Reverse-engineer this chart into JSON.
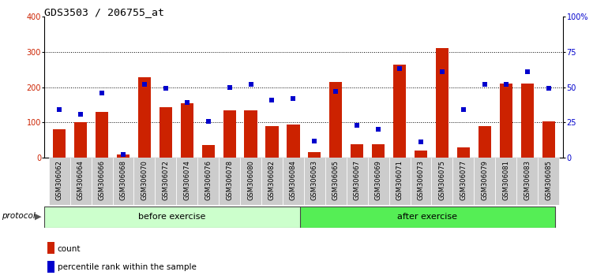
{
  "title": "GDS3503 / 206755_at",
  "categories": [
    "GSM306062",
    "GSM306064",
    "GSM306066",
    "GSM306068",
    "GSM306070",
    "GSM306072",
    "GSM306074",
    "GSM306076",
    "GSM306078",
    "GSM306080",
    "GSM306082",
    "GSM306084",
    "GSM306063",
    "GSM306065",
    "GSM306067",
    "GSM306069",
    "GSM306071",
    "GSM306073",
    "GSM306075",
    "GSM306077",
    "GSM306079",
    "GSM306081",
    "GSM306083",
    "GSM306085"
  ],
  "bar_values": [
    80,
    101,
    130,
    10,
    228,
    143,
    155,
    35,
    135,
    135,
    90,
    93,
    15,
    215,
    38,
    38,
    263,
    20,
    310,
    28,
    90,
    210,
    210,
    103
  ],
  "percentile_values": [
    34,
    31,
    46,
    2.5,
    52,
    49,
    39,
    26,
    50,
    52,
    41,
    42,
    12,
    47,
    23,
    20,
    63,
    11,
    61,
    34,
    52,
    52,
    61,
    49
  ],
  "before_exercise_count": 12,
  "after_exercise_count": 12,
  "bar_color": "#cc2200",
  "percentile_color": "#0000cc",
  "before_color": "#ccffcc",
  "after_color": "#55ee55",
  "protocol_label": "protocol",
  "before_label": "before exercise",
  "after_label": "after exercise",
  "legend_count_label": "count",
  "legend_percentile_label": "percentile rank within the sample",
  "xtick_bg": "#cccccc"
}
